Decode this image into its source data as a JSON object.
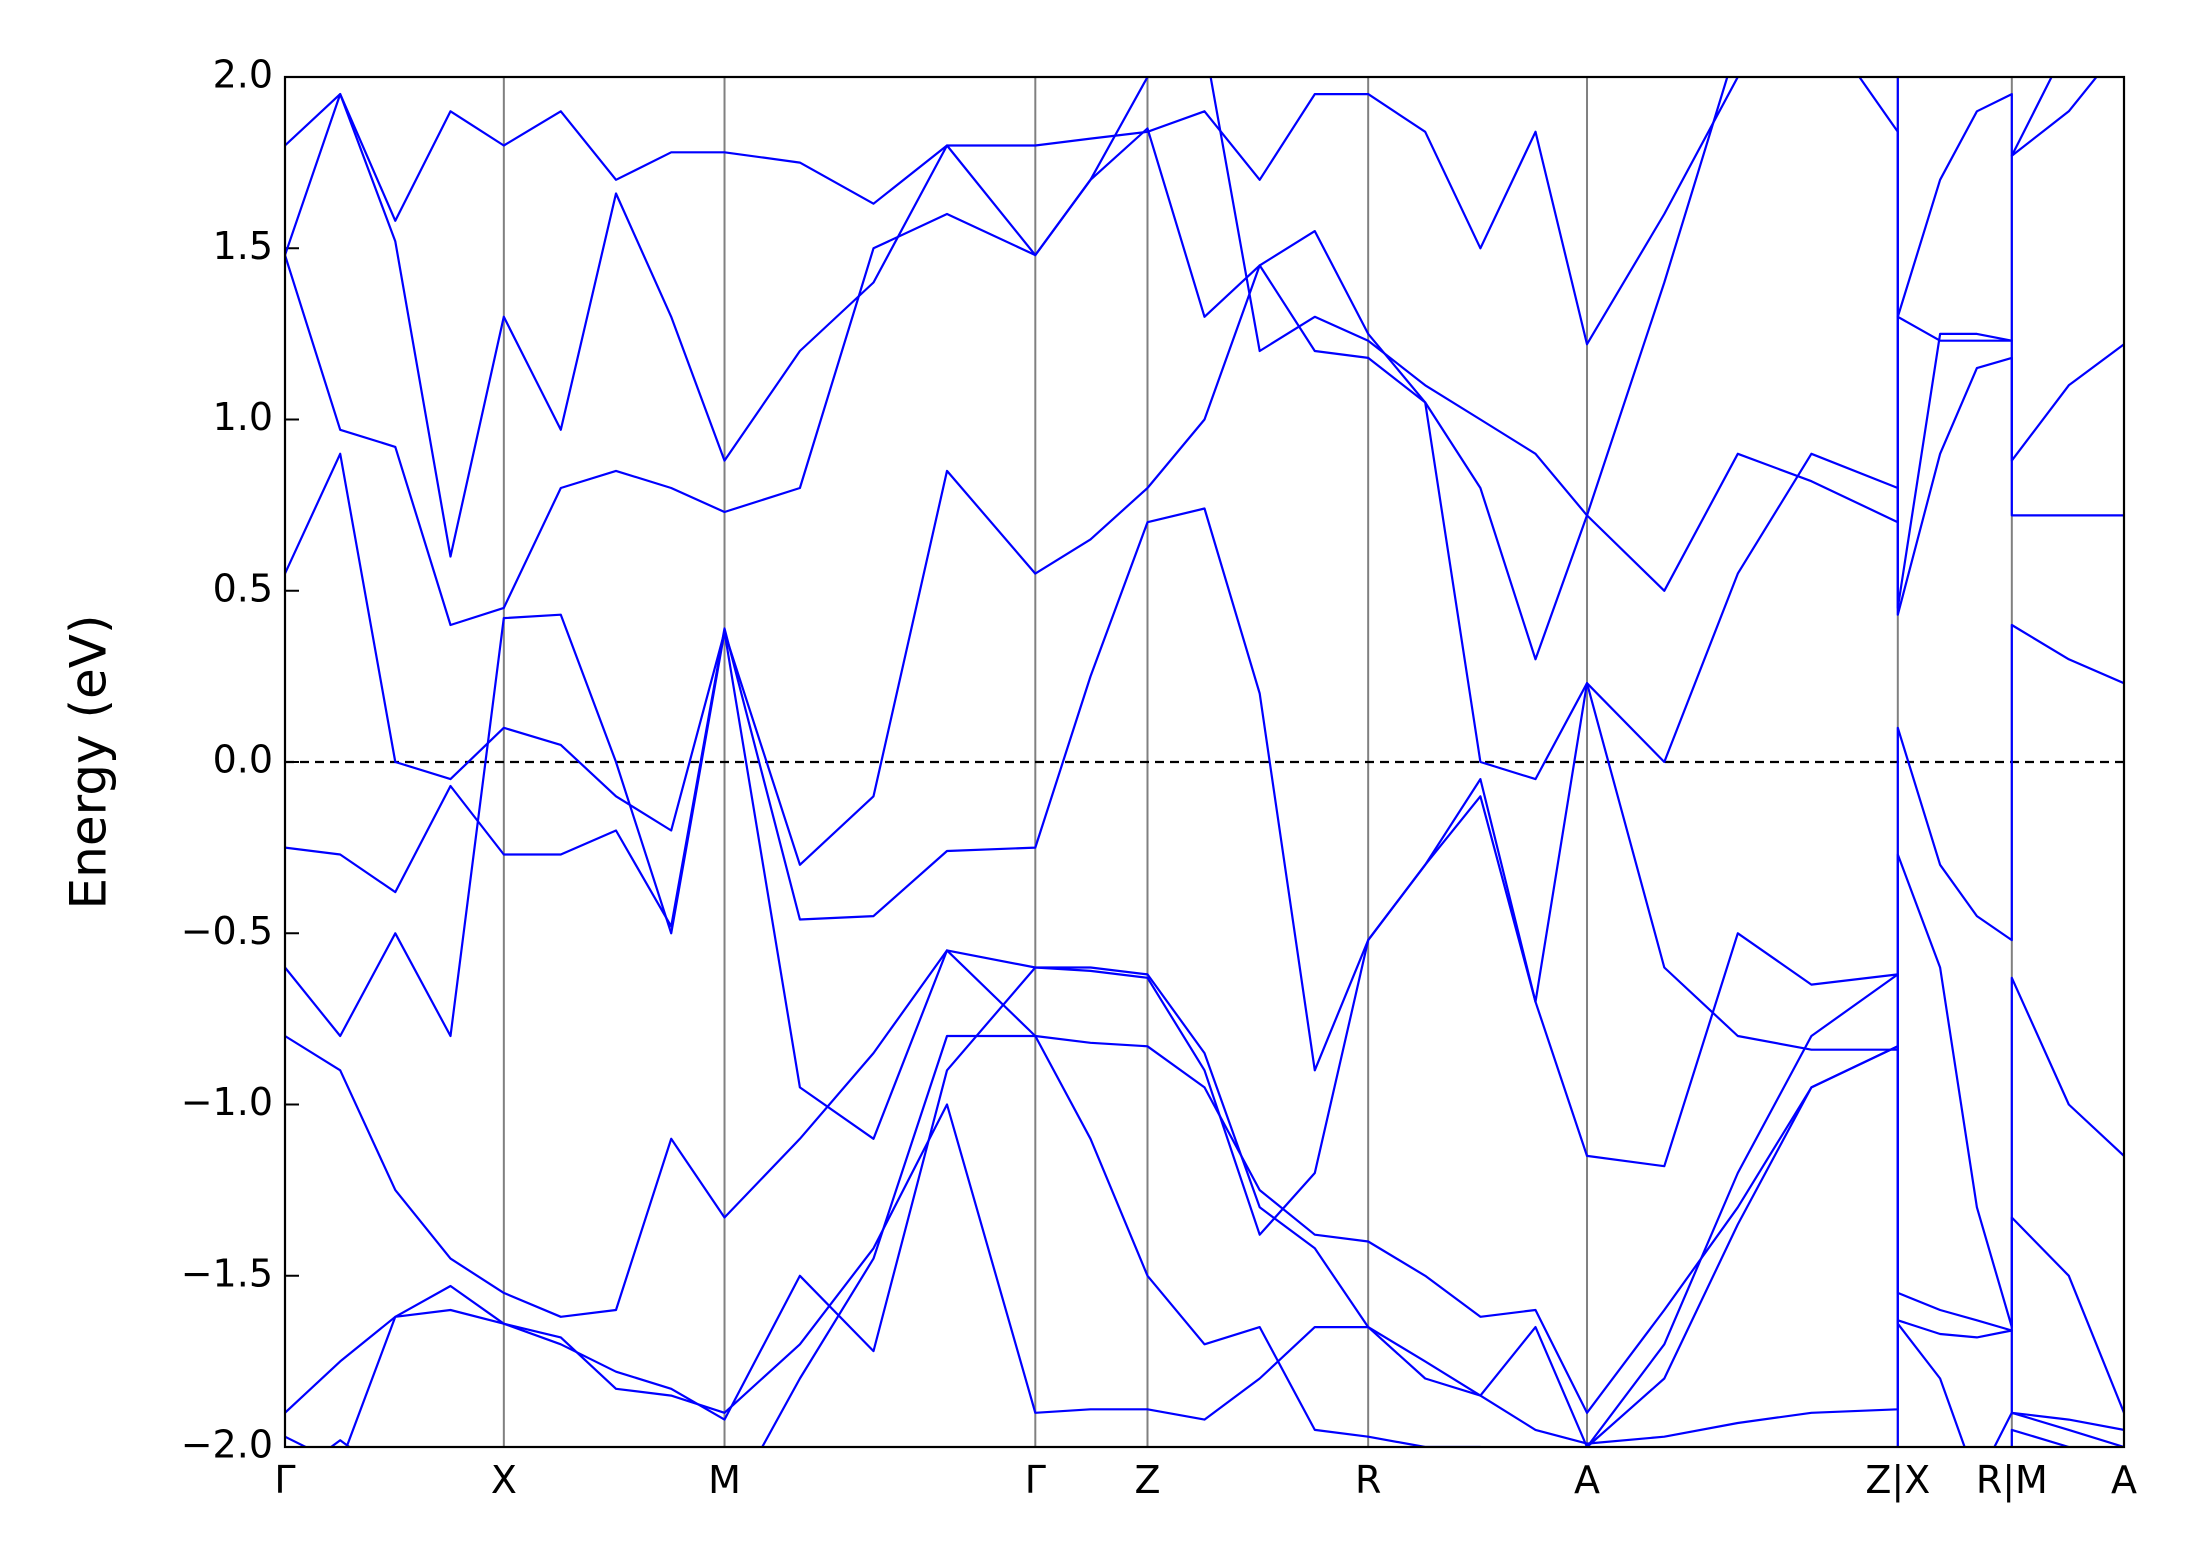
{
  "chart_data": {
    "type": "line",
    "ylabel": "Energy (eV)",
    "color": "#0000ff",
    "x": [
      0,
      0.03,
      0.06,
      0.09,
      0.119,
      0.15,
      0.18,
      0.21,
      0.239,
      0.28,
      0.32,
      0.36,
      0.408,
      0.438,
      0.469,
      0.5,
      0.53,
      0.56,
      0.589,
      0.62,
      0.65,
      0.68,
      0.708,
      0.75,
      0.79,
      0.83,
      0.877,
      0.877,
      0.9,
      0.92,
      0.939,
      0.939,
      0.97,
      1.0
    ],
    "xlim": [
      0,
      1
    ],
    "xticks": [
      {
        "value": 0,
        "label": "Γ"
      },
      {
        "value": 0.119,
        "label": "X"
      },
      {
        "value": 0.239,
        "label": "M"
      },
      {
        "value": 0.408,
        "label": "Γ"
      },
      {
        "value": 0.469,
        "label": "Z"
      },
      {
        "value": 0.589,
        "label": "R"
      },
      {
        "value": 0.708,
        "label": "A"
      },
      {
        "value": 0.877,
        "label": "Z|X"
      },
      {
        "value": 0.939,
        "label": "R|M"
      },
      {
        "value": 1,
        "label": "A"
      }
    ],
    "ylim": [
      -2,
      2
    ],
    "yticks": [
      {
        "value": -2,
        "label": "−2.0"
      },
      {
        "value": -1.5,
        "label": "−1.5"
      },
      {
        "value": -1,
        "label": "−1.0"
      },
      {
        "value": -0.5,
        "label": "−0.5"
      },
      {
        "value": 0,
        "label": "0.0"
      },
      {
        "value": 0.5,
        "label": "0.5"
      },
      {
        "value": 1,
        "label": "1.0"
      },
      {
        "value": 1.5,
        "label": "1.5"
      },
      {
        "value": 2,
        "label": "2.0"
      }
    ],
    "reference_line": {
      "value": 0,
      "style": "dashed"
    },
    "series": [
      {
        "values": [
          -0.25,
          -0.27,
          -0.38,
          -0.07,
          -0.27,
          -0.27,
          -0.2,
          -0.48,
          0.39,
          -0.46,
          -0.45,
          -0.26,
          -0.25,
          0.25,
          0.7,
          0.74,
          0.2,
          -0.9,
          -0.52,
          -0.3,
          -0.05,
          -0.7,
          0.23,
          -0.6,
          -0.8,
          -0.84,
          -0.84,
          0.1,
          -0.3,
          -0.45,
          -0.52,
          0.4,
          0.3,
          0.23
        ]
      },
      {
        "values": [
          0.55,
          0.9,
          0.0,
          -0.05,
          0.1,
          0.05,
          -0.1,
          -0.2,
          0.38,
          -0.3,
          -0.1,
          0.85,
          0.55,
          0.65,
          0.8,
          1.0,
          1.45,
          1.2,
          1.18,
          1.05,
          0.0,
          -0.05,
          0.23,
          0.0,
          0.55,
          0.9,
          0.8,
          0.43,
          0.9,
          1.15,
          1.18,
          0.88,
          1.1,
          1.22
        ]
      },
      {
        "values": [
          -0.6,
          -0.8,
          -0.5,
          -0.8,
          0.42,
          0.43,
          0.0,
          -0.5,
          0.38,
          -0.95,
          -1.1,
          -0.55,
          -0.6,
          -0.61,
          -0.63,
          -0.9,
          -1.38,
          -1.2,
          -0.52,
          -0.3,
          -0.1,
          -0.7,
          -1.15,
          -1.18,
          -0.5,
          -0.65,
          -0.62,
          -0.27,
          -0.6,
          -1.3,
          -1.65,
          -0.63,
          -1.0,
          -1.15
        ]
      },
      {
        "values": [
          1.48,
          0.97,
          0.92,
          0.4,
          0.45,
          0.8,
          0.85,
          0.8,
          0.73,
          0.8,
          1.5,
          1.6,
          1.48,
          1.7,
          1.85,
          1.3,
          1.45,
          1.55,
          1.25,
          1.05,
          0.8,
          0.3,
          0.72,
          0.5,
          0.9,
          0.82,
          0.7,
          1.3,
          1.23,
          1.23,
          1.23,
          0.72,
          0.72,
          0.72
        ]
      },
      {
        "values": [
          1.8,
          1.95,
          1.58,
          1.9,
          1.8,
          1.9,
          1.7,
          1.78,
          1.78,
          1.75,
          1.63,
          1.8,
          1.8,
          1.82,
          1.84,
          1.9,
          1.7,
          1.95,
          1.95,
          1.84,
          1.5,
          1.84,
          1.22,
          1.6,
          2.0,
          2.2,
          1.84,
          1.3,
          1.7,
          1.9,
          1.95,
          1.77,
          1.9,
          2.1
        ]
      },
      {
        "values": [
          1.48,
          1.95,
          1.52,
          0.6,
          1.3,
          0.97,
          1.66,
          1.3,
          0.88,
          1.2,
          1.4,
          1.8,
          1.48,
          1.7,
          2.0,
          2.1,
          1.2,
          1.3,
          1.23,
          1.1,
          1.0,
          0.9,
          0.72,
          1.4,
          2.1,
          2.2,
          2.2,
          0.45,
          1.25,
          1.25,
          1.23,
          1.77,
          2.1,
          2.2
        ]
      },
      {
        "values": [
          -0.8,
          -0.9,
          -1.25,
          -1.45,
          -1.55,
          -1.62,
          -1.6,
          -1.1,
          -1.33,
          -1.1,
          -0.85,
          -0.55,
          -0.8,
          -0.82,
          -0.83,
          -0.95,
          -1.25,
          -1.38,
          -1.4,
          -1.5,
          -1.62,
          -1.6,
          -1.9,
          -1.6,
          -1.3,
          -0.95,
          -0.83,
          -1.55,
          -1.6,
          -1.63,
          -1.66,
          -1.33,
          -1.5,
          -1.9
        ]
      },
      {
        "values": [
          -1.9,
          -1.75,
          -1.62,
          -1.6,
          -1.64,
          -1.68,
          -1.83,
          -1.85,
          -1.9,
          -1.7,
          -1.42,
          -1.0,
          -1.9,
          -1.89,
          -1.89,
          -1.92,
          -1.8,
          -1.65,
          -1.65,
          -1.75,
          -1.85,
          -1.95,
          -1.99,
          -1.97,
          -1.93,
          -1.9,
          -1.89,
          -1.63,
          -1.67,
          -1.68,
          -1.66,
          -1.9,
          -1.92,
          -1.95
        ]
      },
      {
        "values": [
          -1.97,
          -2.05,
          -1.62,
          -1.53,
          -1.64,
          -1.7,
          -1.78,
          -1.83,
          -1.92,
          -1.5,
          -1.72,
          -0.9,
          -0.6,
          -0.6,
          -0.62,
          -0.85,
          -1.3,
          -1.42,
          -1.65,
          -1.8,
          -1.85,
          -1.65,
          -2.0,
          -1.7,
          -1.2,
          -0.8,
          -0.62,
          -1.64,
          -1.8,
          -2.1,
          -1.9,
          -1.9,
          -1.95,
          -2.0
        ]
      },
      {
        "values": [
          -2.1,
          -1.98,
          -2.1,
          -2.2,
          -2.2,
          -2.3,
          -2.2,
          -2.1,
          -2.2,
          -1.8,
          -1.45,
          -0.8,
          -0.8,
          -1.1,
          -1.5,
          -1.7,
          -1.65,
          -1.95,
          -1.97,
          -2.0,
          -2.0,
          -2.1,
          -2.0,
          -1.8,
          -1.35,
          -0.95,
          -0.83,
          -2.05,
          -2.1,
          -2.2,
          -2.2,
          -1.95,
          -2.0,
          -2.05
        ]
      }
    ]
  }
}
